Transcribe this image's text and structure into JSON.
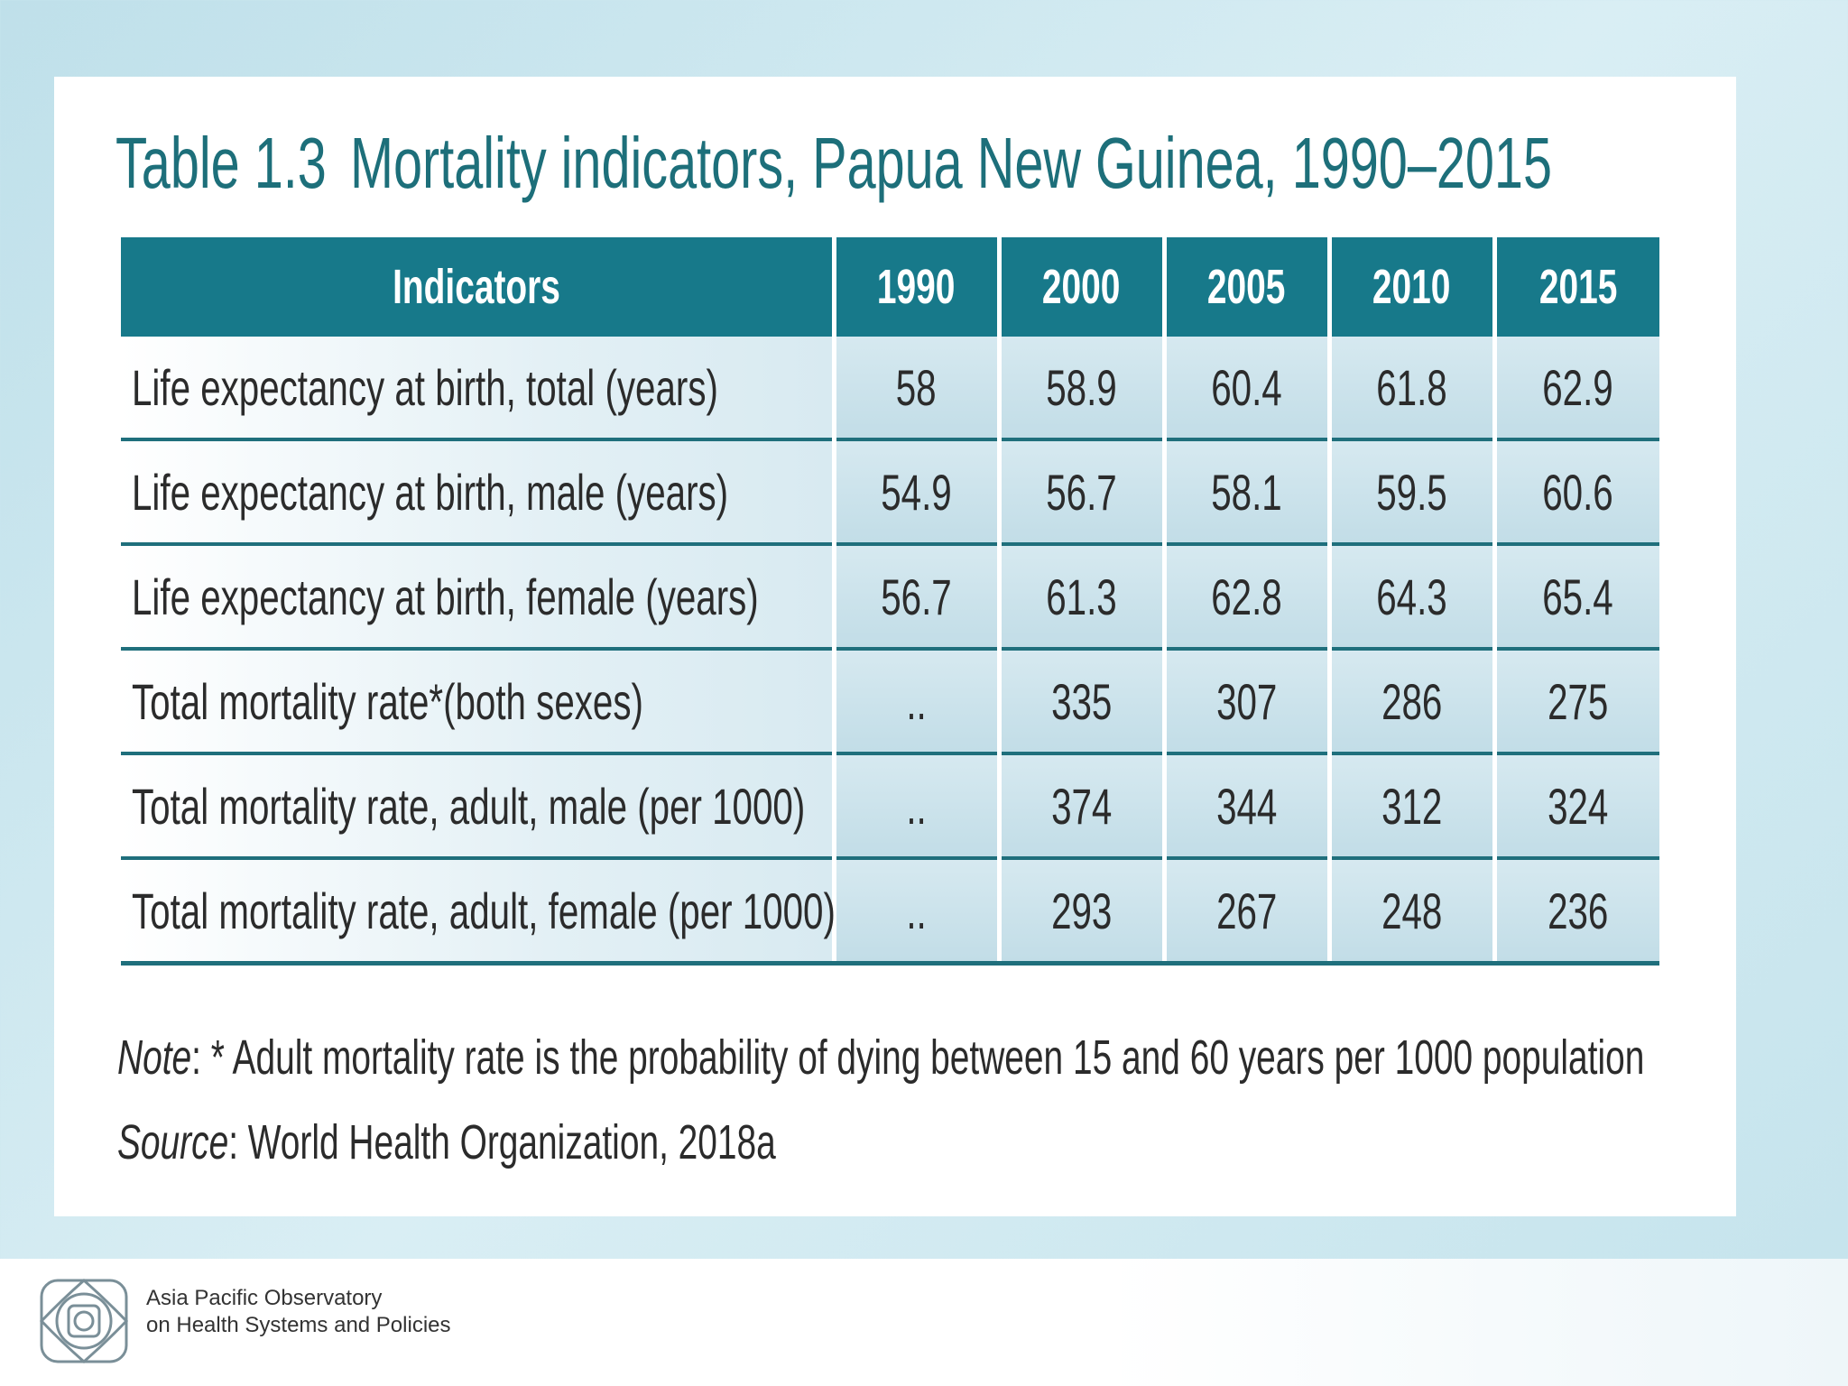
{
  "header": {
    "table_number": "Table 1.3",
    "title": "Mortality indicators, Papua New Guinea, 1990–2015"
  },
  "table": {
    "columns": [
      "Indicators",
      "1990",
      "2000",
      "2005",
      "2010",
      "2015"
    ],
    "rows": [
      [
        "Life expectancy at birth, total (years)",
        "58",
        "58.9",
        "60.4",
        "61.8",
        "62.9"
      ],
      [
        "Life expectancy at birth, male (years)",
        "54.9",
        "56.7",
        "58.1",
        "59.5",
        "60.6"
      ],
      [
        "Life expectancy at birth, female (years)",
        "56.7",
        "61.3",
        "62.8",
        "64.3",
        "65.4"
      ],
      [
        "Total mortality rate*(both sexes)",
        "..",
        "335",
        "307",
        "286",
        "275"
      ],
      [
        "Total mortality rate, adult, male (per 1000)",
        "..",
        "374",
        "344",
        "312",
        "324"
      ],
      [
        "Total mortality rate, adult, female (per 1000)",
        "..",
        "293",
        "267",
        "248",
        "236"
      ]
    ]
  },
  "notes": {
    "note_label": "Note",
    "note_text": ": * Adult mortality rate is the probability of dying between 15 and 60 years per 1000 population",
    "source_label": "Source",
    "source_text": ": World Health Organization, 2018a"
  },
  "footer": {
    "line1": "Asia Pacific Observatory",
    "line2": "on Health Systems and Policies"
  }
}
